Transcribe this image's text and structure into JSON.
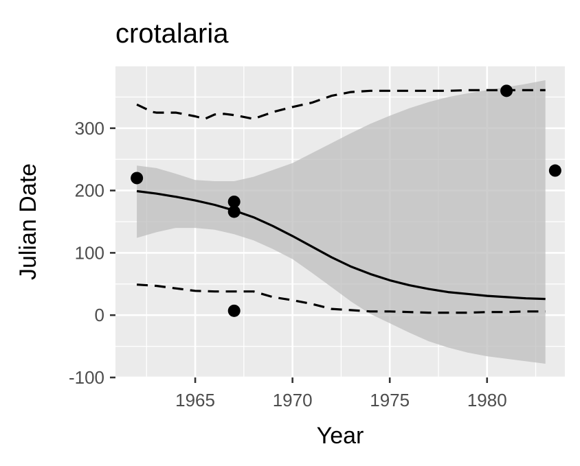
{
  "chart_data": {
    "type": "scatter",
    "title": "crotalaria",
    "xlabel": "Year",
    "ylabel": "Julian Date",
    "xlim": [
      1960.9,
      1984.0
    ],
    "ylim": [
      -100,
      400
    ],
    "x_ticks": [
      1965,
      1970,
      1975,
      1980
    ],
    "y_ticks": [
      -100,
      0,
      100,
      200,
      300
    ],
    "x_tick_labels": [
      "1965",
      "1970",
      "1975",
      "1980"
    ],
    "y_tick_labels": [
      "-100",
      "0",
      "100",
      "200",
      "300"
    ],
    "grid": true,
    "legend": "none",
    "colors": {
      "panel": "#ebebeb",
      "grid": "#ffffff",
      "ribbon": "#bdbdbd",
      "points": "#000000",
      "lines": "#000000",
      "tick_text": "#4d4d4d"
    },
    "points": [
      {
        "x": 1962,
        "y": 220
      },
      {
        "x": 1967,
        "y": 182
      },
      {
        "x": 1967,
        "y": 166
      },
      {
        "x": 1967,
        "y": 7
      },
      {
        "x": 1981,
        "y": 360
      },
      {
        "x": 1983.5,
        "y": 232
      }
    ],
    "fit": {
      "x": [
        1962,
        1963,
        1964,
        1965,
        1966,
        1967,
        1968,
        1969,
        1970,
        1971,
        1972,
        1973,
        1974,
        1975,
        1976,
        1977,
        1978,
        1979,
        1980,
        1981,
        1982,
        1983
      ],
      "y": [
        199,
        195,
        190,
        184,
        177,
        168,
        157,
        143,
        127,
        110,
        93,
        78,
        66,
        56,
        48,
        42,
        37,
        34,
        31,
        29,
        27,
        26
      ]
    },
    "ribbon": {
      "x": [
        1962,
        1963,
        1964,
        1965,
        1966,
        1967,
        1968,
        1969,
        1970,
        1971,
        1972,
        1973,
        1974,
        1975,
        1976,
        1977,
        1978,
        1979,
        1980,
        1981,
        1982,
        1983
      ],
      "lower": [
        124,
        133,
        140,
        140,
        137,
        130,
        120,
        106,
        90,
        68,
        45,
        22,
        2,
        -13,
        -28,
        -42,
        -52,
        -60,
        -66,
        -70,
        -74,
        -78
      ],
      "upper": [
        240,
        236,
        227,
        217,
        215,
        215,
        222,
        233,
        244,
        260,
        276,
        292,
        307,
        320,
        332,
        342,
        350,
        356,
        361,
        366,
        371,
        377
      ]
    },
    "quantile_upper": {
      "x": [
        1962,
        1962.8,
        1963,
        1964,
        1965,
        1965.5,
        1966,
        1966.5,
        1967,
        1968,
        1969,
        1970,
        1971,
        1972,
        1973,
        1974,
        1975,
        1976,
        1977,
        1978,
        1979,
        1980,
        1981,
        1982,
        1983
      ],
      "y": [
        338,
        326,
        325,
        325,
        319,
        315,
        322,
        323,
        321,
        315,
        326,
        334,
        341,
        352,
        358,
        360,
        360,
        360,
        360,
        360,
        361,
        361,
        361,
        361,
        361
      ]
    },
    "quantile_lower": {
      "x": [
        1962,
        1963,
        1964,
        1965,
        1966,
        1967,
        1968,
        1969,
        1970,
        1971,
        1972,
        1973,
        1974,
        1975,
        1976,
        1977,
        1978,
        1979,
        1980,
        1981,
        1982,
        1983
      ],
      "y": [
        49,
        47,
        43,
        39,
        38,
        38,
        38,
        29,
        24,
        18,
        10,
        8,
        6,
        6,
        5,
        4,
        4,
        4,
        5,
        5,
        6,
        6
      ]
    }
  }
}
